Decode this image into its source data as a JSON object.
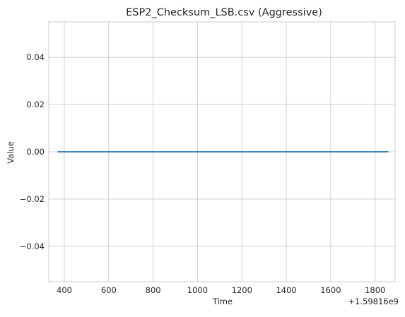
{
  "chart_data": {
    "type": "line",
    "title": "ESP2_Checksum_LSB.csv (Aggressive)",
    "xlabel": "Time",
    "ylabel": "Value",
    "x_offset_label": "+1.59816e9",
    "xlim": [
      330,
      1890
    ],
    "ylim": [
      -0.055,
      0.055
    ],
    "xticks": [
      400,
      600,
      800,
      1000,
      1200,
      1400,
      1600,
      1800
    ],
    "xtick_labels": [
      "400",
      "600",
      "800",
      "1000",
      "1200",
      "1400",
      "1600",
      "1800"
    ],
    "yticks": [
      -0.04,
      -0.02,
      0.0,
      0.02,
      0.04
    ],
    "ytick_labels": [
      "−0.04",
      "−0.02",
      "0.00",
      "0.02",
      "0.04"
    ],
    "grid": true,
    "series": [
      {
        "x": [
          370,
          1860
        ],
        "y": [
          0,
          0
        ],
        "color": "#1f77b4"
      }
    ]
  }
}
